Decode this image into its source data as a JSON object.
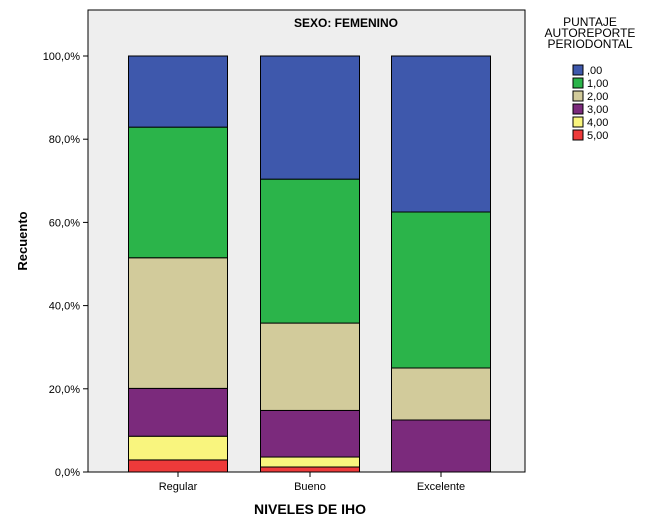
{
  "chart_data": {
    "type": "bar",
    "stacked": true,
    "title": "SEXO: FEMENINO",
    "xlabel": "NIVELES DE IHO",
    "ylabel": "Recuento",
    "categories": [
      "Regular",
      "Bueno",
      "Excelente"
    ],
    "ylim": [
      0,
      100
    ],
    "yticks": [
      "0,0%",
      "20,0%",
      "40,0%",
      "60,0%",
      "80,0%",
      "100,0%"
    ],
    "legend_title": [
      "PUNTAJE",
      "AUTOREPORTE",
      "PERIODONTAL"
    ],
    "legend_position": "right",
    "grid": false,
    "series": [
      {
        "name": ",00",
        "color": "#3e58ac",
        "values": [
          17.1,
          29.6,
          37.5
        ]
      },
      {
        "name": "1,00",
        "color": "#2bb44a",
        "values": [
          31.4,
          34.6,
          37.5
        ]
      },
      {
        "name": "2,00",
        "color": "#d2cb9b",
        "values": [
          31.4,
          21.0,
          12.5
        ]
      },
      {
        "name": "3,00",
        "color": "#7b2a7c",
        "values": [
          11.5,
          11.2,
          12.5
        ]
      },
      {
        "name": "4,00",
        "color": "#f9f57e",
        "values": [
          5.7,
          2.4,
          0
        ]
      },
      {
        "name": "5,00",
        "color": "#ee3a3a",
        "values": [
          2.9,
          1.2,
          0
        ]
      }
    ]
  }
}
